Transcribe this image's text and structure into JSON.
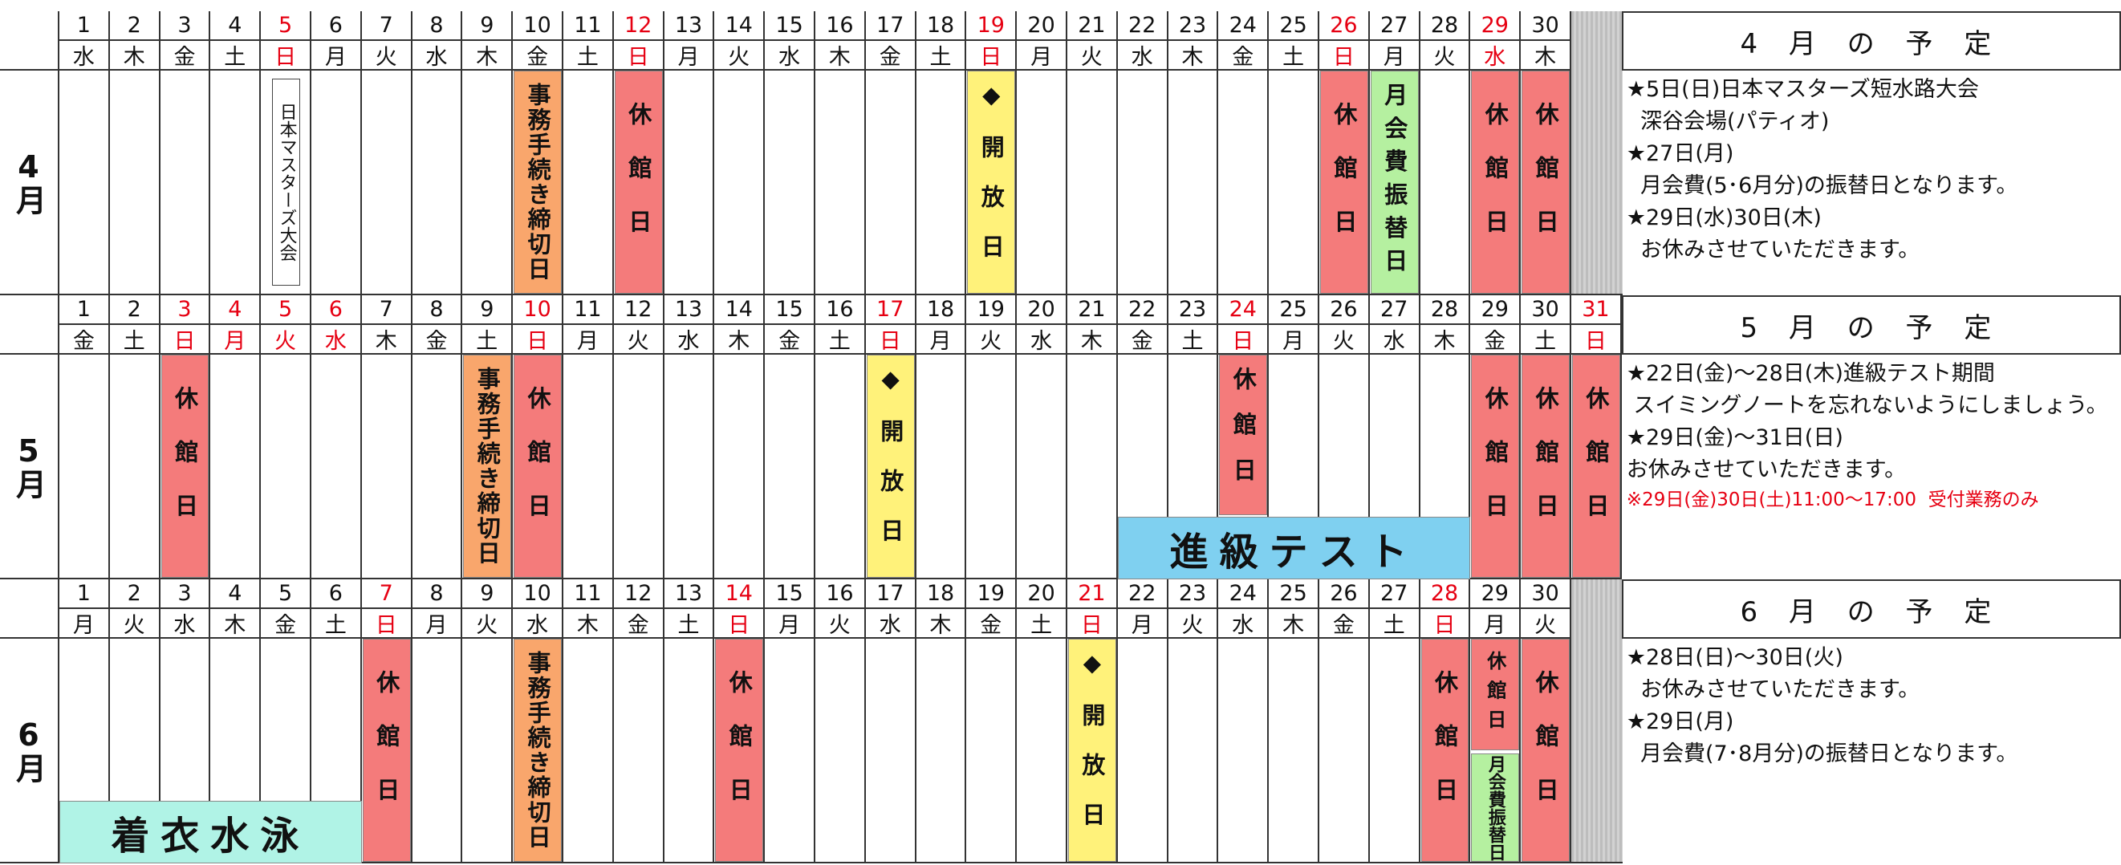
{
  "months": [
    {
      "label": "4月",
      "days": [
        {
          "day": "1",
          "weekday": "水"
        },
        {
          "day": "2",
          "weekday": "木"
        },
        {
          "day": "3",
          "weekday": "金"
        },
        {
          "day": "4",
          "weekday": "土"
        },
        {
          "day": "5",
          "weekday": "日",
          "red": true
        },
        {
          "day": "6",
          "weekday": "月"
        },
        {
          "day": "7",
          "weekday": "火"
        },
        {
          "day": "8",
          "weekday": "水"
        },
        {
          "day": "9",
          "weekday": "木"
        },
        {
          "day": "10",
          "weekday": "金"
        },
        {
          "day": "11",
          "weekday": "土"
        },
        {
          "day": "12",
          "weekday": "日",
          "red": true
        },
        {
          "day": "13",
          "weekday": "月"
        },
        {
          "day": "14",
          "weekday": "火"
        },
        {
          "day": "15",
          "weekday": "水"
        },
        {
          "day": "16",
          "weekday": "木"
        },
        {
          "day": "17",
          "weekday": "金"
        },
        {
          "day": "18",
          "weekday": "土"
        },
        {
          "day": "19",
          "weekday": "日",
          "red": true
        },
        {
          "day": "20",
          "weekday": "月"
        },
        {
          "day": "21",
          "weekday": "火"
        },
        {
          "day": "22",
          "weekday": "水"
        },
        {
          "day": "23",
          "weekday": "木"
        },
        {
          "day": "24",
          "weekday": "金"
        },
        {
          "day": "25",
          "weekday": "土"
        },
        {
          "day": "26",
          "weekday": "日",
          "red": true
        },
        {
          "day": "27",
          "weekday": "月"
        },
        {
          "day": "28",
          "weekday": "火"
        },
        {
          "day": "29",
          "weekday": "水",
          "red": true
        },
        {
          "day": "30",
          "weekday": "木"
        }
      ],
      "events": [
        {
          "day": 5,
          "text": "日本マスターズ大会",
          "color": "#ffffff"
        },
        {
          "day": 10,
          "text": "事務手続き締切日",
          "color": "#f9a66c"
        },
        {
          "day": 12,
          "text": "休館日",
          "color": "#f47b7b"
        },
        {
          "day": 19,
          "text": "◆開放日",
          "color": "#fff27a"
        },
        {
          "day": 26,
          "text": "休館日",
          "color": "#f47b7b"
        },
        {
          "day": 27,
          "text": "月会費振替日",
          "color": "#b5f0a0"
        },
        {
          "day": 29,
          "text": "休館日",
          "color": "#f47b7b"
        },
        {
          "day": 30,
          "text": "休館日",
          "color": "#f47b7b"
        }
      ],
      "notes": {
        "title": "4 月 の 予 定",
        "lines": [
          {
            "text": "★5日(日)日本マスターズ短水路大会"
          },
          {
            "text": "  深谷会場(パティオ)"
          },
          {
            "text": "★27日(月)"
          },
          {
            "text": "  月会費(5･6月分)の振替日となります。"
          },
          {
            "text": "★29日(水)30日(木)"
          },
          {
            "text": "  お休みさせていただきます。"
          }
        ]
      }
    },
    {
      "label": "5月",
      "days": [
        {
          "day": "1",
          "weekday": "金"
        },
        {
          "day": "2",
          "weekday": "土"
        },
        {
          "day": "3",
          "weekday": "日",
          "red": true
        },
        {
          "day": "4",
          "weekday": "月",
          "red": true
        },
        {
          "day": "5",
          "weekday": "火",
          "red": true
        },
        {
          "day": "6",
          "weekday": "水",
          "red": true
        },
        {
          "day": "7",
          "weekday": "木"
        },
        {
          "day": "8",
          "weekday": "金"
        },
        {
          "day": "9",
          "weekday": "土"
        },
        {
          "day": "10",
          "weekday": "日",
          "red": true
        },
        {
          "day": "11",
          "weekday": "月"
        },
        {
          "day": "12",
          "weekday": "火"
        },
        {
          "day": "13",
          "weekday": "水"
        },
        {
          "day": "14",
          "weekday": "木"
        },
        {
          "day": "15",
          "weekday": "金"
        },
        {
          "day": "16",
          "weekday": "土"
        },
        {
          "day": "17",
          "weekday": "日",
          "red": true
        },
        {
          "day": "18",
          "weekday": "月"
        },
        {
          "day": "19",
          "weekday": "火"
        },
        {
          "day": "20",
          "weekday": "水"
        },
        {
          "day": "21",
          "weekday": "木"
        },
        {
          "day": "22",
          "weekday": "金"
        },
        {
          "day": "23",
          "weekday": "土"
        },
        {
          "day": "24",
          "weekday": "日",
          "red": true
        },
        {
          "day": "25",
          "weekday": "月"
        },
        {
          "day": "26",
          "weekday": "火"
        },
        {
          "day": "27",
          "weekday": "水"
        },
        {
          "day": "28",
          "weekday": "木"
        },
        {
          "day": "29",
          "weekday": "金"
        },
        {
          "day": "30",
          "weekday": "土"
        },
        {
          "day": "31",
          "weekday": "日",
          "red": true
        }
      ],
      "events": [
        {
          "day": 3,
          "text": "休館日",
          "color": "#f47b7b"
        },
        {
          "day": 9,
          "text": "事務手続き締切日",
          "color": "#f9a66c"
        },
        {
          "day": 10,
          "text": "休館日",
          "color": "#f47b7b"
        },
        {
          "day": 17,
          "text": "◆開放日",
          "color": "#fff27a"
        },
        {
          "day": 24,
          "text": "休館日",
          "color": "#f47b7b"
        },
        {
          "day": 29,
          "text": "休館日",
          "color": "#f47b7b"
        },
        {
          "day": 30,
          "text": "休館日",
          "color": "#f47b7b"
        },
        {
          "day": 31,
          "text": "休館日",
          "color": "#f47b7b"
        }
      ],
      "banner": {
        "text": "進級テスト",
        "from": 22,
        "to": 28,
        "color": "#7fd0f0"
      },
      "notes": {
        "title": "5 月 の 予 定",
        "lines": [
          {
            "text": "★22日(金)～28日(木)進級テスト期間"
          },
          {
            "text": " スイミングノートを忘れないようにしましょう。"
          },
          {
            "text": "★29日(金)～31日(日)"
          },
          {
            "text": "お休みさせていただきます。"
          },
          {
            "text": "※29日(金)30日(土)11:00～17:00  受付業務のみ",
            "red": true
          }
        ]
      }
    },
    {
      "label": "6月",
      "days": [
        {
          "day": "1",
          "weekday": "月"
        },
        {
          "day": "2",
          "weekday": "火"
        },
        {
          "day": "3",
          "weekday": "水"
        },
        {
          "day": "4",
          "weekday": "木"
        },
        {
          "day": "5",
          "weekday": "金"
        },
        {
          "day": "6",
          "weekday": "土"
        },
        {
          "day": "7",
          "weekday": "日",
          "red": true
        },
        {
          "day": "8",
          "weekday": "月"
        },
        {
          "day": "9",
          "weekday": "火"
        },
        {
          "day": "10",
          "weekday": "水"
        },
        {
          "day": "11",
          "weekday": "木"
        },
        {
          "day": "12",
          "weekday": "金"
        },
        {
          "day": "13",
          "weekday": "土"
        },
        {
          "day": "14",
          "weekday": "日",
          "red": true
        },
        {
          "day": "15",
          "weekday": "月"
        },
        {
          "day": "16",
          "weekday": "火"
        },
        {
          "day": "17",
          "weekday": "水"
        },
        {
          "day": "18",
          "weekday": "木"
        },
        {
          "day": "19",
          "weekday": "金"
        },
        {
          "day": "20",
          "weekday": "土"
        },
        {
          "day": "21",
          "weekday": "日",
          "red": true
        },
        {
          "day": "22",
          "weekday": "月"
        },
        {
          "day": "23",
          "weekday": "火"
        },
        {
          "day": "24",
          "weekday": "水"
        },
        {
          "day": "25",
          "weekday": "木"
        },
        {
          "day": "26",
          "weekday": "金"
        },
        {
          "day": "27",
          "weekday": "土"
        },
        {
          "day": "28",
          "weekday": "日",
          "red": true
        },
        {
          "day": "29",
          "weekday": "月"
        },
        {
          "day": "30",
          "weekday": "火"
        }
      ],
      "events": [
        {
          "day": 7,
          "text": "休館日",
          "color": "#f47b7b"
        },
        {
          "day": 10,
          "text": "事務手続き締切日",
          "color": "#f9a66c"
        },
        {
          "day": 14,
          "text": "休館日",
          "color": "#f47b7b"
        },
        {
          "day": 21,
          "text": "◆開放日",
          "color": "#fff27a"
        },
        {
          "day": 28,
          "text": "休館日",
          "color": "#f47b7b"
        },
        {
          "day": 29,
          "text": "休館日",
          "color": "#f47b7b"
        },
        {
          "day": 29,
          "text": "月会費振替日",
          "color": "#b5f0a0"
        },
        {
          "day": 30,
          "text": "休館日",
          "color": "#f47b7b"
        }
      ],
      "banner": {
        "text": "着衣水泳",
        "from": 1,
        "to": 6,
        "color": "#b0f3e6"
      },
      "notes": {
        "title": "6 月 の 予 定",
        "lines": [
          {
            "text": "★28日(日)～30日(火)"
          },
          {
            "text": "  お休みさせていただきます。"
          },
          {
            "text": "★29日(月)"
          },
          {
            "text": "  月会費(7･8月分)の振替日となります。"
          }
        ]
      }
    }
  ]
}
